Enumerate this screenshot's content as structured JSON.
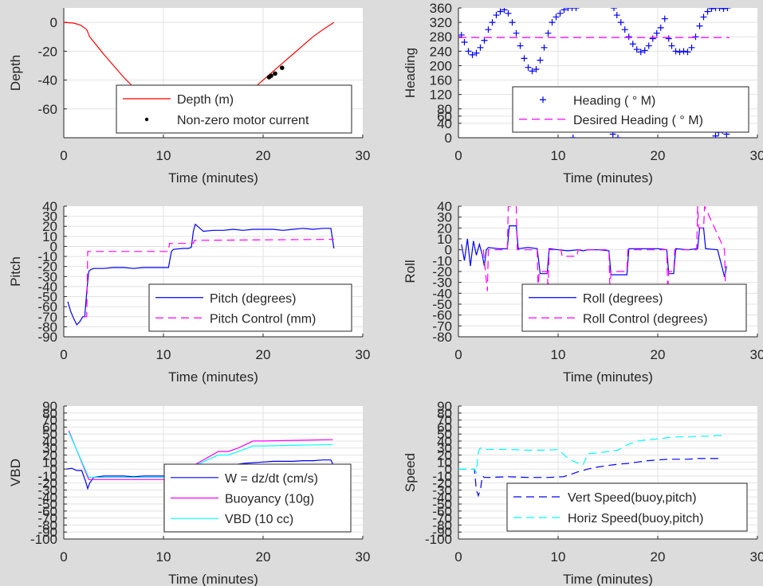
{
  "chart_data": [
    {
      "type": "line",
      "id": "depth",
      "xlabel": "Time (minutes)",
      "ylabel": "Depth",
      "xlim": [
        0,
        30
      ],
      "ylim": [
        -80,
        10
      ],
      "xticks": [
        0,
        10,
        20,
        30
      ],
      "yticks": [
        0,
        -20,
        -40,
        -60
      ],
      "grid": true,
      "legend_position": "lower-right",
      "series": [
        {
          "name": "Depth (m)",
          "style": "line",
          "color": "#ff0000",
          "x": [
            0,
            1,
            1.7,
            2.3,
            2.6,
            4,
            6,
            8,
            10,
            11,
            12,
            12.5,
            13,
            13.5,
            14,
            15,
            16,
            17,
            18,
            19,
            20,
            21,
            22,
            23,
            24,
            25,
            26,
            27.1
          ],
          "y": [
            0,
            -0.5,
            -2,
            -5,
            -10,
            -22,
            -38,
            -52,
            -62,
            -65.5,
            -67,
            -67.3,
            -67.5,
            -67.3,
            -67,
            -65,
            -61,
            -57,
            -52,
            -46,
            -40,
            -34,
            -28,
            -22,
            -16,
            -10,
            -5,
            0
          ]
        },
        {
          "name": "Non-zero motor current",
          "style": "dots",
          "color": "#000000",
          "x": [
            10.8,
            11.2,
            11.6,
            12,
            12.4,
            12.8,
            13.2,
            13.6,
            14,
            14.4,
            14.8,
            15.2,
            15.6,
            16,
            16.4,
            16.8,
            17.2,
            17.6,
            18.2,
            18.6,
            20.6,
            20.8,
            21.2,
            21.9
          ],
          "y": [
            -62.5,
            -63.5,
            -64.5,
            -65.5,
            -66.5,
            -67,
            -67.3,
            -67.5,
            -67.4,
            -67,
            -66.5,
            -65.5,
            -64.5,
            -63,
            -61.5,
            -60,
            -58.5,
            -56.5,
            -53,
            -51,
            -38,
            -37,
            -35.5,
            -31.5
          ]
        }
      ]
    },
    {
      "type": "scatter",
      "id": "heading",
      "xlabel": "Time (minutes)",
      "ylabel": "Heading",
      "xlim": [
        0,
        30
      ],
      "ylim": [
        0,
        360
      ],
      "xticks": [
        0,
        10,
        20,
        30
      ],
      "yticks": [
        0,
        40,
        60,
        80,
        120,
        160,
        200,
        240,
        280,
        320,
        360
      ],
      "ytick_labels": [
        "0",
        "40",
        "60",
        "80",
        "120",
        "160",
        "200",
        "240",
        "280",
        "320",
        "360"
      ],
      "grid": true,
      "legend_position": "lower-right",
      "series": [
        {
          "name": "Heading (   ° M)",
          "style": "plus",
          "color": "#0000ff",
          "x": [
            0.3,
            0.6,
            1,
            1.4,
            1.8,
            2.2,
            2.6,
            3,
            3.4,
            3.8,
            4.2,
            4.6,
            5,
            5.4,
            5.8,
            6.2,
            6.6,
            7,
            7.4,
            7.8,
            8.2,
            8.6,
            9,
            9.4,
            9.8,
            10.2,
            10.6,
            11,
            11.4,
            11.8,
            11.5,
            12,
            12.5,
            13,
            13.5,
            14,
            14.5,
            15,
            15.5,
            16,
            15.6,
            15.9,
            16.3,
            16.7,
            17.1,
            17.5,
            17.9,
            18.3,
            18.7,
            19.1,
            19.5,
            19.9,
            20.3,
            20.7,
            21.1,
            21.4,
            21.8,
            22.2,
            22.6,
            23,
            23.4,
            23.8,
            24.2,
            24.6,
            25,
            25.4,
            25.8,
            26.2,
            26.6,
            27,
            25.8,
            26.1,
            26.5,
            26.9
          ],
          "y": [
            285,
            265,
            240,
            230,
            235,
            250,
            270,
            300,
            320,
            340,
            350,
            355,
            345,
            320,
            290,
            255,
            220,
            195,
            185,
            190,
            215,
            250,
            290,
            320,
            335,
            345,
            355,
            360,
            360,
            360,
            0,
            30,
            55,
            65,
            65,
            55,
            40,
            25,
            10,
            0,
            360,
            340,
            320,
            300,
            280,
            260,
            245,
            238,
            242,
            255,
            275,
            290,
            305,
            330,
            275,
            255,
            240,
            238,
            240,
            238,
            250,
            280,
            310,
            335,
            350,
            358,
            360,
            360,
            358,
            360,
            5,
            15,
            20,
            10
          ]
        },
        {
          "name": "Desired Heading (    ° M)",
          "style": "dashed",
          "color": "#ff00ff",
          "x": [
            0,
            27.2
          ],
          "y": [
            278,
            278
          ]
        }
      ]
    },
    {
      "type": "line",
      "id": "pitch",
      "xlabel": "Time (minutes)",
      "ylabel": "Pitch",
      "xlim": [
        0,
        30
      ],
      "ylim": [
        -90,
        40
      ],
      "xticks": [
        0,
        10,
        20,
        30
      ],
      "yticks": [
        40,
        30,
        20,
        10,
        0,
        -10,
        -20,
        -30,
        -40,
        -50,
        -60,
        -70,
        -80,
        -90
      ],
      "ytick_labels": [
        "40",
        "30",
        "20",
        "10",
        "0",
        "-10",
        "-20",
        "-30",
        "-40",
        "-50",
        "-60",
        "-70",
        "-80",
        "-90"
      ],
      "grid": true,
      "legend_position": "lower-right",
      "series": [
        {
          "name": "Pitch (degrees)",
          "style": "line",
          "color": "#0000ff",
          "x": [
            0.4,
            0.7,
            1,
            1.3,
            1.6,
            1.9,
            2.1,
            2.3,
            2.5,
            2.7,
            3,
            4,
            5,
            6,
            7,
            8,
            9,
            10,
            10.5,
            10.8,
            11,
            12,
            12.5,
            12.8,
            13,
            13.2,
            14,
            15,
            16,
            17,
            18,
            19,
            20,
            21,
            22,
            23,
            24,
            25,
            26,
            26.8,
            27.1
          ],
          "y": [
            -55,
            -65,
            -72,
            -78,
            -75,
            -70,
            -70,
            -45,
            -25,
            -23,
            -22,
            -22,
            -21,
            -21,
            -22,
            -21,
            -21,
            -21,
            -21,
            -5,
            -3,
            -2,
            -2,
            -1,
            15,
            22,
            15,
            16,
            16,
            17,
            16,
            17,
            17,
            17,
            16,
            17,
            18,
            17,
            18,
            18,
            -2
          ]
        },
        {
          "name": "Pitch Control (mm)",
          "style": "dashed",
          "color": "#ff00ff",
          "x": [
            2,
            2.3,
            2.4,
            10.5,
            10.6,
            13,
            13.1,
            27.1
          ],
          "y": [
            -70,
            -70,
            -5,
            -5,
            3,
            3,
            6,
            7
          ]
        }
      ]
    },
    {
      "type": "line",
      "id": "roll",
      "xlabel": "Time (minutes)",
      "ylabel": "Roll",
      "xlim": [
        0,
        30
      ],
      "ylim": [
        -80,
        40
      ],
      "xticks": [
        0,
        10,
        20,
        30
      ],
      "yticks": [
        40,
        30,
        20,
        10,
        0,
        -10,
        -20,
        -30,
        -40,
        -50,
        -60,
        -70,
        -80
      ],
      "ytick_labels": [
        "40",
        "30",
        "20",
        "10",
        "0",
        "-10",
        "-20",
        "-30",
        "-40",
        "-50",
        "-60",
        "-70",
        "-80"
      ],
      "grid": true,
      "legend_position": "lower-right",
      "series": [
        {
          "name": "Roll (degrees)",
          "style": "line",
          "color": "#0000ff",
          "x": [
            0.3,
            0.6,
            0.9,
            1.2,
            1.5,
            1.8,
            2.1,
            2.4,
            2.6,
            2.8,
            3,
            4,
            4.9,
            5.1,
            5.8,
            6,
            7,
            7.9,
            8.2,
            8.9,
            9.1,
            10,
            11,
            12,
            12.5,
            13,
            14,
            15.1,
            15.3,
            16.9,
            17.1,
            18,
            20,
            20.9,
            21.1,
            21.6,
            21.8,
            23,
            24,
            24.2,
            24.6,
            24.8,
            26,
            26.7,
            26.9
          ],
          "y": [
            5,
            -10,
            10,
            -15,
            8,
            -5,
            5,
            -5,
            -15,
            0,
            2,
            1,
            1,
            22,
            22,
            1,
            2,
            1,
            -22,
            -22,
            1,
            0,
            -1,
            0,
            -1,
            0,
            0,
            -1,
            -23,
            -23,
            1,
            1,
            1,
            0,
            -22,
            -22,
            1,
            0,
            1,
            20,
            20,
            1,
            0,
            -25,
            -15
          ]
        },
        {
          "name": "Roll Control (degrees)",
          "style": "dashed",
          "color": "#ff00ff",
          "x": [
            2.5,
            2.7,
            2.9,
            3,
            4.9,
            5,
            5.1,
            5.7,
            5.8,
            5.9,
            7.9,
            8,
            8.1,
            8.9,
            9,
            9.1,
            10,
            10.3,
            10.4,
            11.9,
            12,
            15.1,
            15.2,
            15.3,
            16.9,
            17,
            20.9,
            21,
            21.1,
            21.6,
            21.7,
            23.9,
            24,
            24.1,
            24.6,
            24.7,
            26.7,
            26.8,
            26.9
          ],
          "y": [
            0,
            -20,
            -38,
            0,
            0,
            40,
            40,
            40,
            40,
            0,
            0,
            -38,
            -20,
            -20,
            -38,
            0,
            0,
            0,
            -6,
            -6,
            0,
            0,
            -38,
            -20,
            -20,
            0,
            0,
            -38,
            -20,
            -20,
            0,
            0,
            40,
            20,
            20,
            40,
            0,
            -38,
            -38
          ]
        }
      ]
    },
    {
      "type": "line",
      "id": "vbd",
      "xlabel": "Time (minutes)",
      "ylabel": "VBD",
      "xlim": [
        0,
        30
      ],
      "ylim": [
        -100,
        90
      ],
      "xticks": [
        0,
        10,
        20,
        30
      ],
      "yticks": [
        90,
        80,
        70,
        60,
        50,
        40,
        30,
        20,
        10,
        0,
        -10,
        -20,
        -30,
        -40,
        -50,
        -60,
        -70,
        -80,
        -90,
        -100
      ],
      "ytick_labels": [
        "90",
        "80",
        "70",
        "60",
        "50",
        "40",
        "30",
        "20",
        "10",
        "0",
        "-10",
        "-20",
        "-30",
        "-40",
        "-50",
        "-60",
        "-70",
        "-80",
        "-90",
        "-100"
      ],
      "grid": true,
      "legend_position": "lower-right",
      "series": [
        {
          "name": "W = dz/dt (cm/s)",
          "style": "line",
          "color": "#0000ff",
          "x": [
            0.3,
            0.8,
            1.3,
            1.8,
            2.2,
            2.4,
            2.6,
            3,
            4,
            5,
            6,
            7,
            8,
            9,
            10,
            10.5,
            11,
            12,
            13,
            14,
            15,
            16,
            17,
            18,
            19,
            20,
            21,
            22,
            23,
            24,
            25,
            26,
            26.8,
            27
          ],
          "y": [
            0,
            1,
            -2,
            -2,
            -18,
            -28,
            -20,
            -12,
            -10,
            -10,
            -10,
            -11,
            -10,
            -10,
            -10,
            -10,
            -9,
            -5,
            -2,
            1,
            3,
            5,
            6,
            8,
            9,
            10,
            11,
            11,
            11,
            12,
            12,
            13,
            13,
            7
          ]
        },
        {
          "name": "Buoyancy (10g)",
          "style": "line",
          "color": "#ff00ff",
          "x": [
            0.5,
            2.5,
            10.5,
            15.5,
            16.5,
            17.5,
            19,
            20,
            27
          ],
          "y": [
            55,
            -15,
            -15,
            25,
            25,
            30,
            40,
            40,
            42
          ]
        },
        {
          "name": "VBD (10 cc)",
          "style": "line",
          "color": "#00ffff",
          "x": [
            0.5,
            2.5,
            10.5,
            15.5,
            16.5,
            17.5,
            19,
            20,
            27
          ],
          "y": [
            53,
            -12,
            -12,
            20,
            20,
            25,
            33,
            33,
            35
          ]
        }
      ]
    },
    {
      "type": "line",
      "id": "speed",
      "xlabel": "Time (minutes)",
      "ylabel": "Speed",
      "xlim": [
        0,
        30
      ],
      "ylim": [
        -100,
        90
      ],
      "xticks": [
        0,
        10,
        20,
        30
      ],
      "yticks": [
        90,
        80,
        70,
        60,
        50,
        40,
        30,
        20,
        10,
        0,
        -10,
        -20,
        -30,
        -40,
        -50,
        -60,
        -70,
        -80,
        -90,
        -100
      ],
      "ytick_labels": [
        "90",
        "80",
        "70",
        "60",
        "50",
        "40",
        "30",
        "20",
        "10",
        "0",
        "-10",
        "-20",
        "-30",
        "-40",
        "-50",
        "-60",
        "-70",
        "-80",
        "-90",
        "-100"
      ],
      "grid": true,
      "legend_position": "lower-right",
      "series": [
        {
          "name": "Vert Speed(buoy,pitch)",
          "style": "dashed",
          "color": "#0000ff",
          "x": [
            0,
            1.6,
            1.8,
            2,
            2.2,
            2.4,
            2.6,
            3,
            5,
            7,
            9,
            10.5,
            11,
            12,
            13,
            14,
            15,
            16,
            17,
            18,
            19,
            20,
            21,
            22,
            23,
            24,
            25,
            26,
            26.5
          ],
          "y": [
            0,
            0,
            -30,
            -38,
            -30,
            -10,
            -12,
            -12,
            -11,
            -12,
            -12,
            -11,
            -9,
            -4,
            0,
            3,
            5,
            7,
            8,
            10,
            12,
            13,
            14,
            14,
            14,
            15,
            15,
            15,
            15
          ]
        },
        {
          "name": "Horiz Speed(buoy,pitch)",
          "style": "dashed",
          "color": "#00ffff",
          "x": [
            0,
            1.6,
            1.8,
            2,
            2.2,
            2.5,
            3,
            5,
            7,
            9,
            10,
            11,
            12,
            12.5,
            13,
            14,
            15,
            16,
            17,
            18,
            19,
            20,
            21,
            22,
            23,
            24,
            25,
            26,
            26.5
          ],
          "y": [
            0,
            0,
            -5,
            25,
            30,
            28,
            28,
            28,
            27,
            27,
            28,
            15,
            8,
            6,
            22,
            23,
            25,
            27,
            35,
            40,
            42,
            43,
            45,
            46,
            46,
            47,
            47,
            48,
            48
          ]
        }
      ]
    }
  ]
}
